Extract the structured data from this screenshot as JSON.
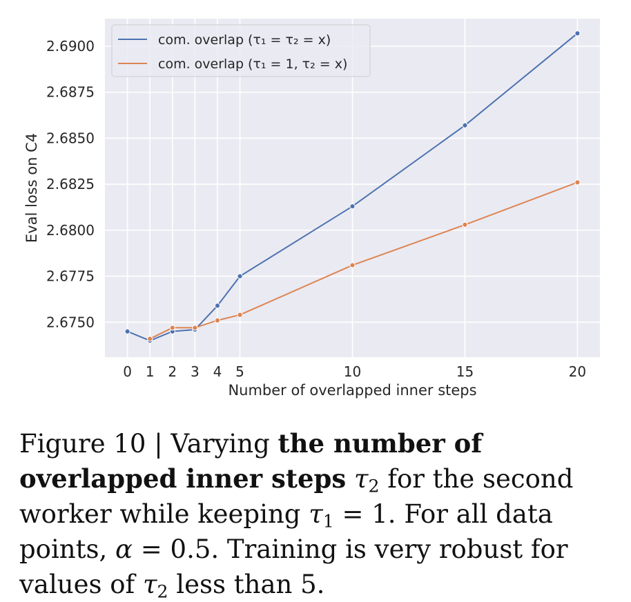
{
  "chart_data": {
    "type": "line",
    "xlabel": "Number of overlapped inner steps",
    "ylabel": "Eval loss on C4",
    "x_ticks": [
      0,
      1,
      2,
      3,
      4,
      5,
      10,
      15,
      20
    ],
    "y_ticks": [
      "2.6750",
      "2.6775",
      "2.6800",
      "2.6825",
      "2.6850",
      "2.6875",
      "2.6900"
    ],
    "xlim": [
      -1,
      21
    ],
    "ylim": [
      2.6731,
      2.6915
    ],
    "grid": true,
    "legend_position": "top-left",
    "series": [
      {
        "name": "com. overlap (τ₁ = τ₂ = x)",
        "color": "#4c72b0",
        "x": [
          0,
          1,
          2,
          3,
          4,
          5,
          10,
          15,
          20
        ],
        "y": [
          2.6745,
          2.674,
          2.6745,
          2.6746,
          2.6759,
          2.6775,
          2.6813,
          2.6857,
          2.6907
        ]
      },
      {
        "name": "com. overlap (τ₁ = 1, τ₂ = x)",
        "color": "#dd8452",
        "x": [
          1,
          2,
          3,
          4,
          5,
          10,
          15,
          20
        ],
        "y": [
          2.6741,
          2.6747,
          2.6747,
          2.6751,
          2.6754,
          2.6781,
          2.6803,
          2.6826
        ]
      }
    ]
  },
  "caption": {
    "prefix": "Figure 10 | Varying ",
    "bold": "the number of overlapped inner steps",
    "sym1": "τ",
    "sub1": "2",
    "mid1": " for the second worker while keeping ",
    "sym2": "τ",
    "sub2": "1",
    "mid2": " = 1. For all data points, ",
    "sym3": "α",
    "mid3": " = 0.5. Training is very robust for values of ",
    "sym4": "τ",
    "sub4": "2",
    "suffix": " less than 5."
  }
}
